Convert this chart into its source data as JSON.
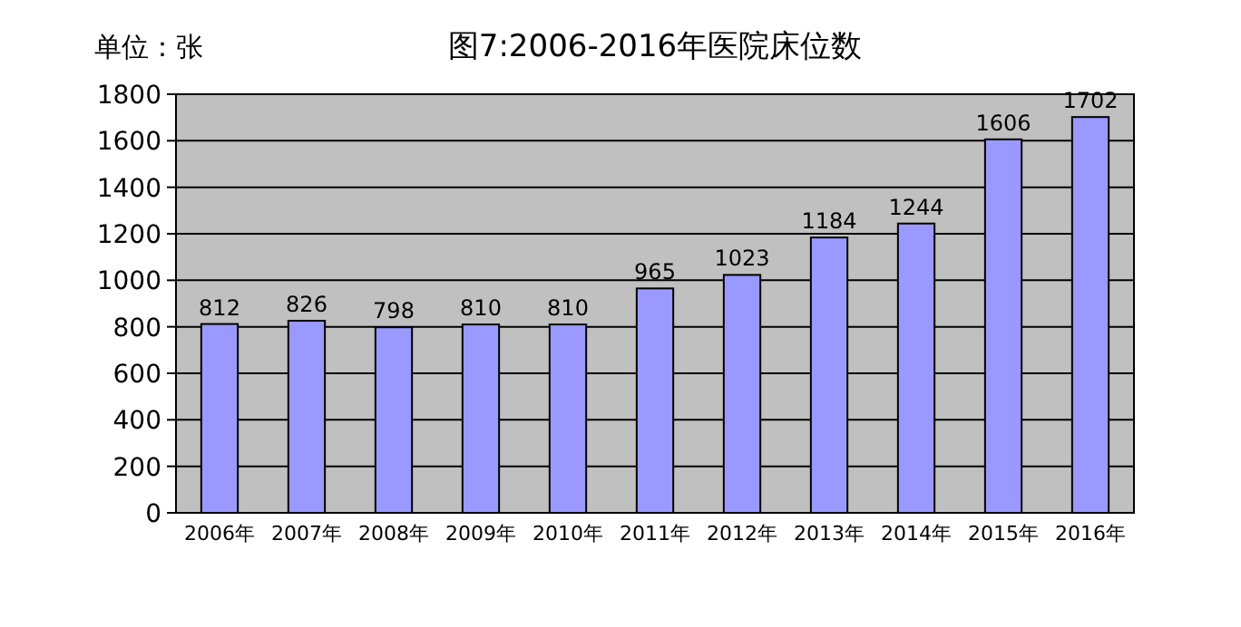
{
  "chart_data": {
    "type": "bar",
    "title": "图7:2006-2016年医院床位数",
    "annotations": [
      "单位：张"
    ],
    "categories": [
      "2006年",
      "2007年",
      "2008年",
      "2009年",
      "2010年",
      "2011年",
      "2012年",
      "2013年",
      "2014年",
      "2015年",
      "2016年"
    ],
    "values": [
      812,
      826,
      798,
      810,
      810,
      965,
      1023,
      1184,
      1244,
      1606,
      1702
    ],
    "color": "#9999ff",
    "ylim": [
      0,
      1800
    ],
    "yticks": [
      0,
      200,
      400,
      600,
      800,
      1000,
      1200,
      1400,
      1600,
      1800
    ],
    "grid": "y",
    "data_labels": true
  }
}
